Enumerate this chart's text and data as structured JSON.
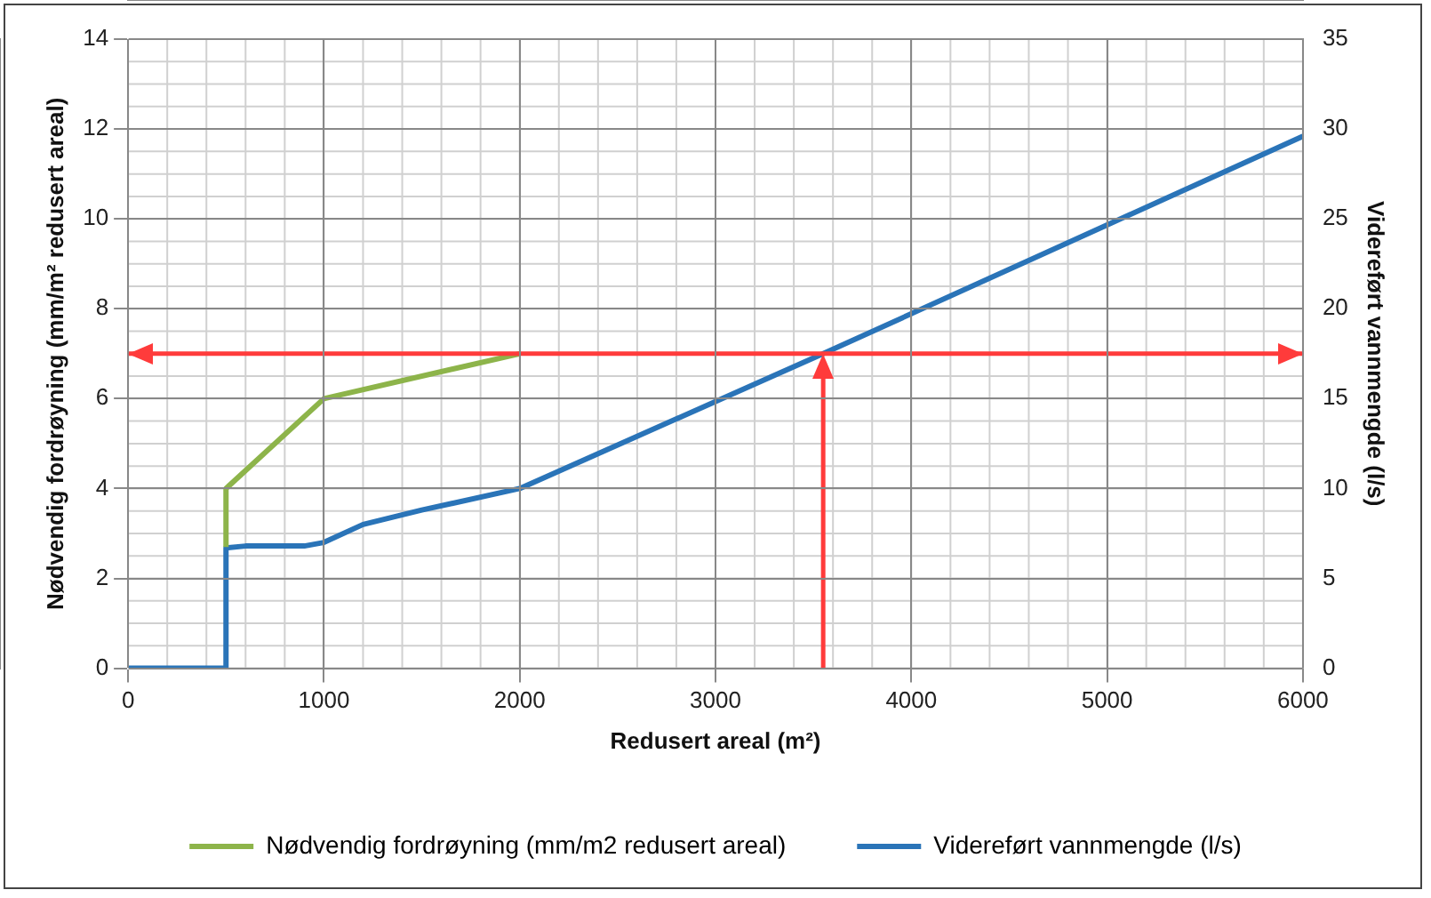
{
  "chart_data": {
    "type": "line",
    "xlabel": "Redusert areal (m²)",
    "ylabel": "Nødvendig fordrøyning (mm/m² redusert areal)",
    "y2label": "Videreført vannmengde (l/s)",
    "xlim": [
      0,
      6000
    ],
    "xticks": [
      0,
      1000,
      2000,
      3000,
      4000,
      5000,
      6000
    ],
    "ylim": [
      0,
      14
    ],
    "yticks": [
      0,
      2,
      4,
      6,
      8,
      10,
      12,
      14
    ],
    "y2lim": [
      0,
      35
    ],
    "y2ticks": [
      0,
      5,
      10,
      15,
      20,
      25,
      30,
      35
    ],
    "series": [
      {
        "name": "Nødvendig fordrøyning (mm/m2 redusert areal)",
        "color": "#8db44a",
        "x": [
          500,
          500,
          1000,
          2000
        ],
        "values": [
          2.7,
          4,
          6,
          7
        ]
      },
      {
        "name": "Videreført vannmengde (l/s)",
        "color": "#2a74b8",
        "axis": "y2",
        "x": [
          0,
          500,
          500,
          600,
          900,
          1000,
          1200,
          1500,
          2000,
          3550,
          6000
        ],
        "values": [
          0,
          0,
          6.7,
          6.8,
          6.8,
          7,
          8,
          8.8,
          10,
          17.5,
          29.6
        ]
      }
    ],
    "ref_lines": [
      {
        "axis": "y",
        "value": 7,
        "color": "#ff3b3b"
      },
      {
        "axis": "x",
        "value": 3550,
        "color": "#ff3b3b"
      }
    ],
    "grid": true,
    "legend": "bottom",
    "marker": "none",
    "line_style": "solid"
  }
}
